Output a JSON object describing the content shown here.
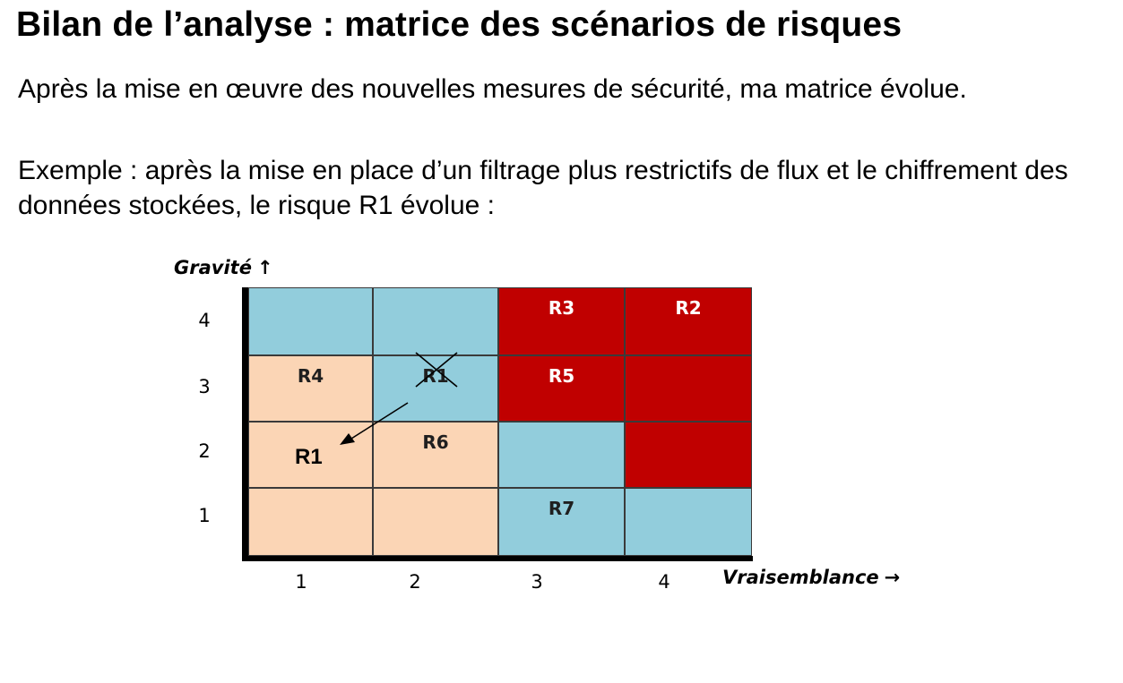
{
  "title": "Bilan de l’analyse : matrice des scénarios de risques",
  "paragraphs": [
    "Après la mise en œuvre des nouvelles mesures de sécurité, ma matrice évolue.",
    "Exemple : après la mise en place d’un filtrage plus restrictifs de flux et le chiffrement des données stockées, le risque R1 évolue :"
  ],
  "matrix": {
    "y_axis_title": "Gravité",
    "y_axis_arrow": "↑",
    "x_axis_title": "Vraisemblance",
    "x_axis_arrow": "→",
    "x_ticks": [
      "1",
      "2",
      "3",
      "4"
    ],
    "y_ticks": [
      "4",
      "3",
      "2",
      "1"
    ],
    "colors": {
      "blue": "#92cddc",
      "peach": "#fbd5b5",
      "red": "#c00000"
    },
    "rows": [
      [
        {
          "color": "blue",
          "label": ""
        },
        {
          "color": "blue",
          "label": ""
        },
        {
          "color": "red",
          "label": "R3"
        },
        {
          "color": "red",
          "label": "R2"
        }
      ],
      [
        {
          "color": "peach",
          "label": "R4"
        },
        {
          "color": "blue",
          "label": "R1"
        },
        {
          "color": "red",
          "label": "R5"
        },
        {
          "color": "red",
          "label": ""
        }
      ],
      [
        {
          "color": "peach",
          "label": ""
        },
        {
          "color": "peach",
          "label": "R6"
        },
        {
          "color": "blue",
          "label": ""
        },
        {
          "color": "red",
          "label": ""
        }
      ],
      [
        {
          "color": "peach",
          "label": ""
        },
        {
          "color": "peach",
          "label": ""
        },
        {
          "color": "blue",
          "label": "R7"
        },
        {
          "color": "blue",
          "label": ""
        }
      ]
    ],
    "moved_risk": {
      "label": "R1",
      "from": {
        "vraisemblance": 2,
        "gravite": 3
      },
      "to": {
        "vraisemblance": 1,
        "gravite": 2
      }
    }
  }
}
